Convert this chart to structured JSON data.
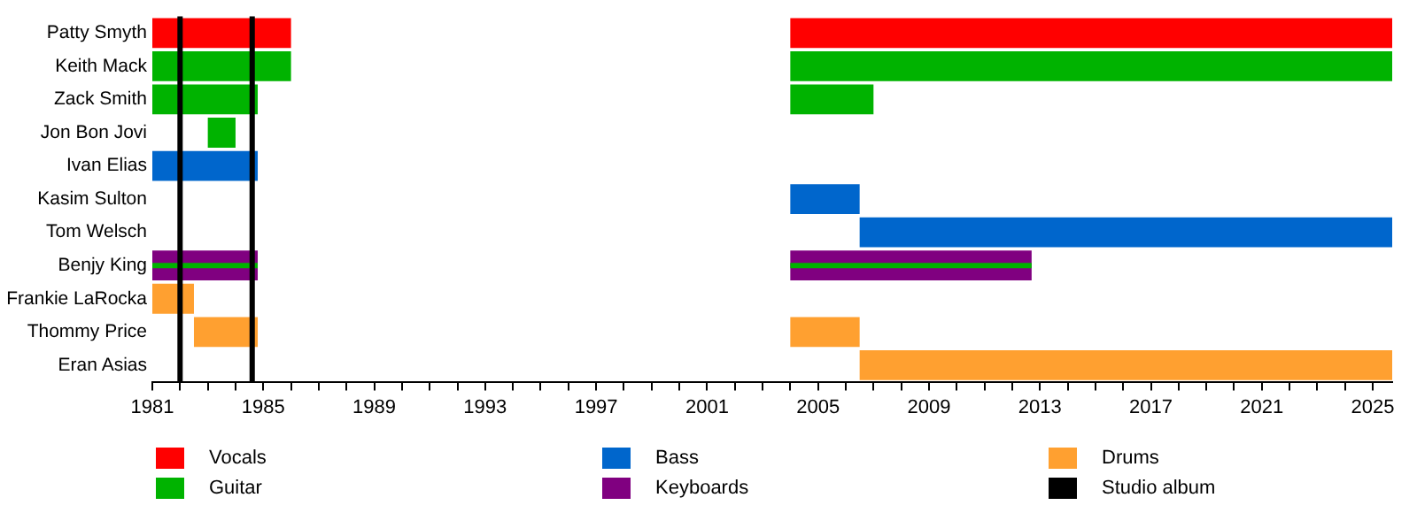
{
  "chart_data": {
    "type": "bar",
    "orientation": "horizontal",
    "categories": [
      "Patty Smyth",
      "Keith Mack",
      "Zack Smith",
      "Jon Bon Jovi",
      "Ivan Elias",
      "Kasim Sulton",
      "Tom Welsch",
      "Benjy King",
      "Frankie LaRocka",
      "Thommy Price",
      "Eran Asias"
    ],
    "series": [
      {
        "name": "Vocals",
        "color": "#ff0000",
        "base": [
          1981,
          null,
          null,
          null,
          null,
          null,
          null,
          null,
          null,
          null,
          null
        ],
        "values": [
          5,
          null,
          null,
          null,
          null,
          null,
          null,
          null,
          null,
          null,
          null
        ]
      },
      {
        "color": "#ff0000",
        "base": [
          2004,
          null,
          null,
          null,
          null,
          null,
          null,
          null,
          null,
          null,
          null
        ],
        "values": [
          21.7,
          null,
          null,
          null,
          null,
          null,
          null,
          null,
          null,
          null,
          null
        ]
      },
      {
        "name": "Guitar",
        "color": "#00b300",
        "base": [
          null,
          1981,
          1981,
          1983,
          null,
          null,
          null,
          null,
          null,
          null,
          null
        ],
        "values": [
          null,
          5,
          3.8,
          1,
          null,
          null,
          null,
          null,
          null,
          null,
          null
        ]
      },
      {
        "color": "#00b300",
        "base": [
          null,
          2004,
          2004,
          null,
          null,
          null,
          null,
          null,
          null,
          null,
          null
        ],
        "values": [
          null,
          21.7,
          3,
          null,
          null,
          null,
          null,
          null,
          null,
          null,
          null
        ]
      },
      {
        "name": "Bass",
        "color": "#0066cc",
        "base": [
          null,
          null,
          null,
          null,
          1981,
          2004,
          2006.5,
          null,
          null,
          null,
          null
        ],
        "values": [
          null,
          null,
          null,
          null,
          3.8,
          2.5,
          19.2,
          null,
          null,
          null,
          null
        ]
      },
      {
        "name": "Keyboards",
        "color": "#800080",
        "base": [
          null,
          null,
          null,
          null,
          null,
          null,
          null,
          1981,
          null,
          null,
          null
        ],
        "values": [
          null,
          null,
          null,
          null,
          null,
          null,
          null,
          3.8,
          null,
          null,
          null
        ]
      },
      {
        "color": "#800080",
        "base": [
          null,
          null,
          null,
          null,
          null,
          null,
          null,
          2004,
          null,
          null,
          null
        ],
        "values": [
          null,
          null,
          null,
          null,
          null,
          null,
          null,
          8.7,
          null,
          null,
          null
        ]
      },
      {
        "name": "Drums",
        "color": "#ffa030",
        "base": [
          null,
          null,
          null,
          null,
          null,
          null,
          null,
          null,
          1981,
          1982.5,
          2006.5
        ],
        "values": [
          null,
          null,
          null,
          null,
          null,
          null,
          null,
          null,
          1.5,
          2.3,
          19.2
        ]
      },
      {
        "color": "#ffa030",
        "base": [
          null,
          null,
          null,
          null,
          null,
          null,
          null,
          null,
          null,
          2004,
          null
        ],
        "values": [
          null,
          null,
          null,
          null,
          null,
          null,
          null,
          null,
          null,
          2.5,
          null
        ]
      },
      {
        "color": "#00b300",
        "base": [
          null,
          null,
          null,
          null,
          null,
          null,
          null,
          1981,
          null,
          null,
          null
        ],
        "values": [
          null,
          null,
          null,
          null,
          null,
          null,
          null,
          3.8,
          null,
          null,
          null
        ]
      },
      {
        "color": "#00b300",
        "base": [
          null,
          null,
          null,
          null,
          null,
          null,
          null,
          2004,
          null,
          null,
          null
        ],
        "values": [
          null,
          null,
          null,
          null,
          null,
          null,
          null,
          8.7,
          null,
          null,
          null
        ]
      }
    ],
    "xlim": [
      1981,
      2025.7
    ],
    "xticks": [
      1981,
      {
        "value": 1982,
        "label": null
      },
      {
        "value": 1983,
        "label": null
      },
      {
        "value": 1984,
        "label": null
      },
      1985,
      {
        "value": 1986,
        "label": null
      },
      {
        "value": 1987,
        "label": null
      },
      {
        "value": 1988,
        "label": null
      },
      1989,
      {
        "value": 1990,
        "label": null
      },
      {
        "value": 1991,
        "label": null
      },
      {
        "value": 1992,
        "label": null
      },
      1993,
      {
        "value": 1994,
        "label": null
      },
      {
        "value": 1995,
        "label": null
      },
      {
        "value": 1996,
        "label": null
      },
      1997,
      {
        "value": 1998,
        "label": null
      },
      {
        "value": 1999,
        "label": null
      },
      {
        "value": 2000,
        "label": null
      },
      2001,
      {
        "value": 2002,
        "label": null
      },
      {
        "value": 2003,
        "label": null
      },
      {
        "value": 2004,
        "label": null
      },
      2005,
      {
        "value": 2006,
        "label": null
      },
      {
        "value": 2007,
        "label": null
      },
      {
        "value": 2008,
        "label": null
      },
      2009,
      {
        "value": 2010,
        "label": null
      },
      {
        "value": 2011,
        "label": null
      },
      {
        "value": 2012,
        "label": null
      },
      2013,
      {
        "value": 2014,
        "label": null
      },
      {
        "value": 2015,
        "label": null
      },
      {
        "value": 2016,
        "label": null
      },
      2017,
      {
        "value": 2018,
        "label": null
      },
      {
        "value": 2019,
        "label": null
      },
      {
        "value": 2020,
        "label": null
      },
      2021,
      {
        "value": 2022,
        "label": null
      },
      {
        "value": 2023,
        "label": null
      },
      {
        "value": 2024,
        "label": null
      },
      2025
    ],
    "ref_lines": [
      {
        "axis": "x",
        "value": 1982,
        "label": "Studio album",
        "color": "#000000"
      },
      {
        "axis": "x",
        "value": 1984.6,
        "color": "#000000"
      }
    ],
    "grid": false,
    "legend": "bottom"
  }
}
